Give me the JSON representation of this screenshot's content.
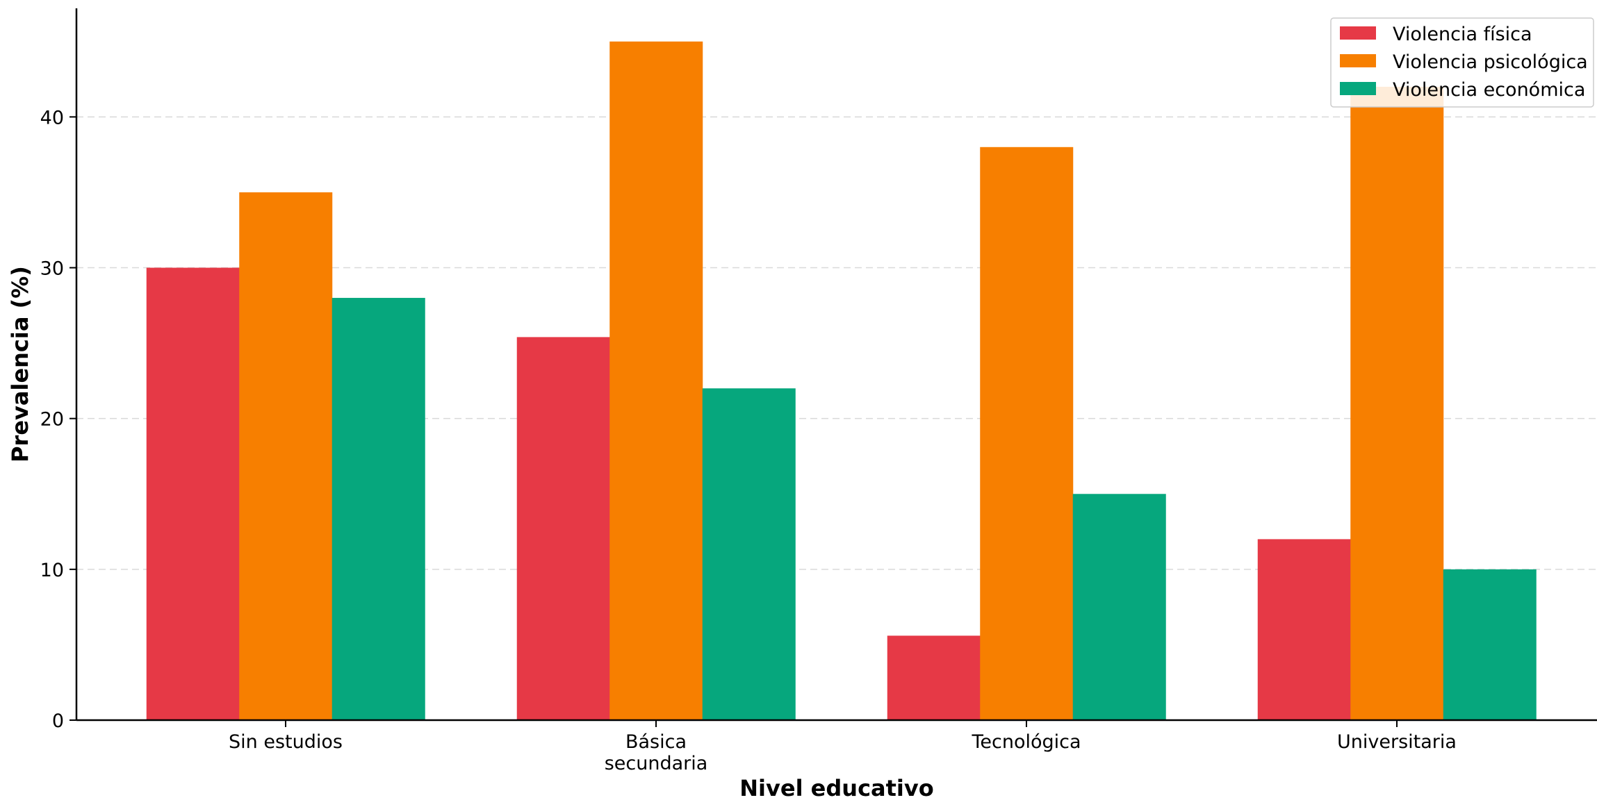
{
  "chart_data": {
    "type": "bar",
    "title": "",
    "xlabel": "Nivel educativo",
    "ylabel": "Prevalencia (%)",
    "categories": [
      [
        "Sin estudios"
      ],
      [
        "Básica",
        "secundaria"
      ],
      [
        "Tecnológica"
      ],
      [
        "Universitaria"
      ]
    ],
    "series": [
      {
        "name": "Violencia física",
        "color": "#e63946",
        "values": [
          30.0,
          25.4,
          5.6,
          12.0
        ]
      },
      {
        "name": "Violencia psicológica",
        "color": "#f77f00",
        "values": [
          35.0,
          45.0,
          38.0,
          42.0
        ]
      },
      {
        "name": "Violencia económica",
        "color": "#06a77d",
        "values": [
          28.0,
          22.0,
          15.0,
          10.0
        ]
      }
    ],
    "ylim": [
      0,
      47.2
    ],
    "yticks": [
      0,
      10,
      20,
      30,
      40
    ],
    "grid": true,
    "legend_position": "top-right"
  }
}
